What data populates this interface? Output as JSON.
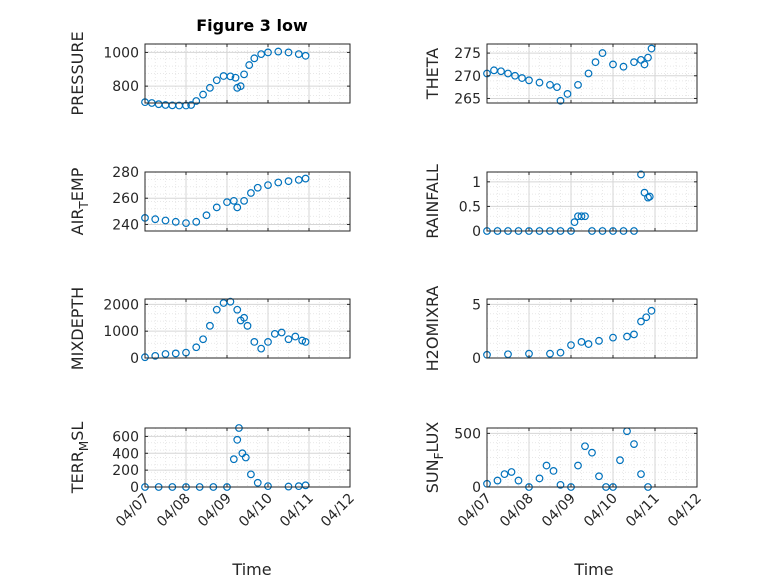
{
  "figure": {
    "title": "Figure 3 low",
    "xlabel": "Time"
  },
  "colors": {
    "marker": "#0072BD",
    "grid": "#E0E0E0",
    "axis": "#262626"
  },
  "chart_data": [
    {
      "type": "scatter",
      "ylabel": "PRESSURE",
      "xlim": [
        "04/07",
        "04/12"
      ],
      "ylim": [
        700,
        1050
      ],
      "yticks": [
        800,
        1000
      ],
      "xticks": [
        "04/07",
        "04/08",
        "04/09",
        "04/10",
        "04/11",
        "04/12"
      ],
      "grid": true,
      "series": [
        {
          "marker": "o",
          "points": [
            [
              "04/07 00:00",
              705
            ],
            [
              "04/07 04:00",
              700
            ],
            [
              "04/07 08:00",
              693
            ],
            [
              "04/07 12:00",
              688
            ],
            [
              "04/07 16:00",
              686
            ],
            [
              "04/07 20:00",
              685
            ],
            [
              "04/08 00:00",
              685
            ],
            [
              "04/08 03:00",
              688
            ],
            [
              "04/08 06:00",
              712
            ],
            [
              "04/08 10:00",
              750
            ],
            [
              "04/08 14:00",
              790
            ],
            [
              "04/08 18:00",
              835
            ],
            [
              "04/08 22:00",
              860
            ],
            [
              "04/09 02:00",
              858
            ],
            [
              "04/09 05:00",
              850
            ],
            [
              "04/09 06:00",
              790
            ],
            [
              "04/09 08:00",
              800
            ],
            [
              "04/09 10:00",
              870
            ],
            [
              "04/09 13:00",
              925
            ],
            [
              "04/09 16:00",
              965
            ],
            [
              "04/09 20:00",
              990
            ],
            [
              "04/10 00:00",
              1000
            ],
            [
              "04/10 06:00",
              1005
            ],
            [
              "04/10 12:00",
              1000
            ],
            [
              "04/10 18:00",
              990
            ],
            [
              "04/10 22:00",
              980
            ]
          ]
        }
      ]
    },
    {
      "type": "scatter",
      "ylabel": "THETA",
      "xlim": [
        "04/07",
        "04/12"
      ],
      "ylim": [
        264,
        277
      ],
      "yticks": [
        265,
        270,
        275
      ],
      "xticks": [
        "04/07",
        "04/08",
        "04/09",
        "04/10",
        "04/11",
        "04/12"
      ],
      "grid": true,
      "series": [
        {
          "marker": "o",
          "points": [
            [
              "04/07 00:00",
              270.5
            ],
            [
              "04/07 04:00",
              271.2
            ],
            [
              "04/07 08:00",
              271.0
            ],
            [
              "04/07 12:00",
              270.5
            ],
            [
              "04/07 16:00",
              270.0
            ],
            [
              "04/07 20:00",
              269.5
            ],
            [
              "04/08 00:00",
              269.0
            ],
            [
              "04/08 06:00",
              268.5
            ],
            [
              "04/08 12:00",
              268.0
            ],
            [
              "04/08 16:00",
              267.5
            ],
            [
              "04/08 18:00",
              264.5
            ],
            [
              "04/08 22:00",
              266.0
            ],
            [
              "04/09 04:00",
              268.0
            ],
            [
              "04/09 10:00",
              270.5
            ],
            [
              "04/09 14:00",
              273.0
            ],
            [
              "04/09 18:00",
              275.0
            ],
            [
              "04/10 00:00",
              272.5
            ],
            [
              "04/10 06:00",
              272.0
            ],
            [
              "04/10 12:00",
              273.0
            ],
            [
              "04/10 16:00",
              273.5
            ],
            [
              "04/10 18:00",
              272.5
            ],
            [
              "04/10 20:00",
              274.0
            ],
            [
              "04/10 22:00",
              276.0
            ]
          ]
        }
      ]
    },
    {
      "type": "scatter",
      "ylabel": "AIR_TEMP",
      "xlim": [
        "04/07",
        "04/12"
      ],
      "ylim": [
        235,
        280
      ],
      "yticks": [
        240,
        260,
        280
      ],
      "xticks": [
        "04/07",
        "04/08",
        "04/09",
        "04/10",
        "04/11",
        "04/12"
      ],
      "grid": true,
      "series": [
        {
          "marker": "o",
          "points": [
            [
              "04/07 00:00",
              245
            ],
            [
              "04/07 06:00",
              244
            ],
            [
              "04/07 12:00",
              243
            ],
            [
              "04/07 18:00",
              242
            ],
            [
              "04/08 00:00",
              241
            ],
            [
              "04/08 06:00",
              242
            ],
            [
              "04/08 12:00",
              247
            ],
            [
              "04/08 18:00",
              253
            ],
            [
              "04/09 00:00",
              257
            ],
            [
              "04/09 04:00",
              258
            ],
            [
              "04/09 06:00",
              253
            ],
            [
              "04/09 10:00",
              258
            ],
            [
              "04/09 14:00",
              264
            ],
            [
              "04/09 18:00",
              268
            ],
            [
              "04/10 00:00",
              270
            ],
            [
              "04/10 06:00",
              272
            ],
            [
              "04/10 12:00",
              273
            ],
            [
              "04/10 18:00",
              274
            ],
            [
              "04/10 22:00",
              275
            ]
          ]
        }
      ]
    },
    {
      "type": "scatter",
      "ylabel": "RAINFALL",
      "xlim": [
        "04/07",
        "04/12"
      ],
      "ylim": [
        0,
        1.2
      ],
      "yticks": [
        0,
        0.5,
        1
      ],
      "xticks": [
        "04/07",
        "04/08",
        "04/09",
        "04/10",
        "04/11",
        "04/12"
      ],
      "grid": true,
      "series": [
        {
          "marker": "o",
          "points": [
            [
              "04/07 00:00",
              0
            ],
            [
              "04/07 06:00",
              0
            ],
            [
              "04/07 12:00",
              0
            ],
            [
              "04/07 18:00",
              0
            ],
            [
              "04/08 00:00",
              0
            ],
            [
              "04/08 06:00",
              0
            ],
            [
              "04/08 12:00",
              0
            ],
            [
              "04/08 18:00",
              0
            ],
            [
              "04/09 00:00",
              0
            ],
            [
              "04/09 02:00",
              0.18
            ],
            [
              "04/09 04:00",
              0.3
            ],
            [
              "04/09 06:00",
              0.3
            ],
            [
              "04/09 08:00",
              0.3
            ],
            [
              "04/09 12:00",
              0
            ],
            [
              "04/09 18:00",
              0
            ],
            [
              "04/10 00:00",
              0
            ],
            [
              "04/10 06:00",
              0
            ],
            [
              "04/10 12:00",
              0
            ],
            [
              "04/10 16:00",
              1.15
            ],
            [
              "04/10 18:00",
              0.78
            ],
            [
              "04/10 20:00",
              0.68
            ],
            [
              "04/10 21:00",
              0.7
            ]
          ]
        }
      ]
    },
    {
      "type": "scatter",
      "ylabel": "MIXDEPTH",
      "xlim": [
        "04/07",
        "04/12"
      ],
      "ylim": [
        0,
        2200
      ],
      "yticks": [
        0,
        1000,
        2000
      ],
      "xticks": [
        "04/07",
        "04/08",
        "04/09",
        "04/10",
        "04/11",
        "04/12"
      ],
      "grid": true,
      "series": [
        {
          "marker": "o",
          "points": [
            [
              "04/07 00:00",
              30
            ],
            [
              "04/07 06:00",
              80
            ],
            [
              "04/07 12:00",
              150
            ],
            [
              "04/07 18:00",
              170
            ],
            [
              "04/08 00:00",
              200
            ],
            [
              "04/08 06:00",
              400
            ],
            [
              "04/08 10:00",
              700
            ],
            [
              "04/08 14:00",
              1200
            ],
            [
              "04/08 18:00",
              1800
            ],
            [
              "04/08 22:00",
              2050
            ],
            [
              "04/09 02:00",
              2100
            ],
            [
              "04/09 06:00",
              1800
            ],
            [
              "04/09 08:00",
              1400
            ],
            [
              "04/09 10:00",
              1500
            ],
            [
              "04/09 12:00",
              1200
            ],
            [
              "04/09 16:00",
              600
            ],
            [
              "04/09 20:00",
              350
            ],
            [
              "04/10 00:00",
              600
            ],
            [
              "04/10 04:00",
              900
            ],
            [
              "04/10 08:00",
              950
            ],
            [
              "04/10 12:00",
              700
            ],
            [
              "04/10 16:00",
              800
            ],
            [
              "04/10 20:00",
              650
            ],
            [
              "04/10 22:00",
              600
            ]
          ]
        }
      ]
    },
    {
      "type": "scatter",
      "ylabel": "H2OMIXRA",
      "xlim": [
        "04/07",
        "04/12"
      ],
      "ylim": [
        0,
        5.5
      ],
      "yticks": [
        0,
        5
      ],
      "xticks": [
        "04/07",
        "04/08",
        "04/09",
        "04/10",
        "04/11",
        "04/12"
      ],
      "grid": true,
      "series": [
        {
          "marker": "o",
          "points": [
            [
              "04/07 00:00",
              0.3
            ],
            [
              "04/07 12:00",
              0.35
            ],
            [
              "04/08 00:00",
              0.4
            ],
            [
              "04/08 12:00",
              0.4
            ],
            [
              "04/08 18:00",
              0.5
            ],
            [
              "04/09 00:00",
              1.2
            ],
            [
              "04/09 06:00",
              1.5
            ],
            [
              "04/09 10:00",
              1.3
            ],
            [
              "04/09 16:00",
              1.6
            ],
            [
              "04/10 00:00",
              1.9
            ],
            [
              "04/10 08:00",
              2.0
            ],
            [
              "04/10 12:00",
              2.2
            ],
            [
              "04/10 16:00",
              3.4
            ],
            [
              "04/10 19:00",
              3.8
            ],
            [
              "04/10 22:00",
              4.4
            ]
          ]
        }
      ]
    },
    {
      "type": "scatter",
      "ylabel": "TERR_MSL",
      "xlim": [
        "04/07",
        "04/12"
      ],
      "ylim": [
        0,
        700
      ],
      "yticks": [
        0,
        200,
        400,
        600
      ],
      "xticks": [
        "04/07",
        "04/08",
        "04/09",
        "04/10",
        "04/11",
        "04/12"
      ],
      "grid": true,
      "series": [
        {
          "marker": "o",
          "points": [
            [
              "04/07 00:00",
              0
            ],
            [
              "04/07 08:00",
              0
            ],
            [
              "04/07 16:00",
              0
            ],
            [
              "04/08 00:00",
              0
            ],
            [
              "04/08 08:00",
              0
            ],
            [
              "04/08 16:00",
              0
            ],
            [
              "04/09 00:00",
              0
            ],
            [
              "04/09 04:00",
              330
            ],
            [
              "04/09 06:00",
              560
            ],
            [
              "04/09 07:00",
              700
            ],
            [
              "04/09 09:00",
              400
            ],
            [
              "04/09 11:00",
              350
            ],
            [
              "04/09 14:00",
              150
            ],
            [
              "04/09 18:00",
              50
            ],
            [
              "04/10 00:00",
              10
            ],
            [
              "04/10 12:00",
              5
            ],
            [
              "04/10 18:00",
              10
            ],
            [
              "04/10 22:00",
              20
            ]
          ]
        }
      ]
    },
    {
      "type": "scatter",
      "ylabel": "SUN_FLUX",
      "xlim": [
        "04/07",
        "04/12"
      ],
      "ylim": [
        0,
        550
      ],
      "yticks": [
        0,
        500
      ],
      "xticks": [
        "04/07",
        "04/08",
        "04/09",
        "04/10",
        "04/11",
        "04/12"
      ],
      "grid": true,
      "series": [
        {
          "marker": "o",
          "points": [
            [
              "04/07 00:00",
              30
            ],
            [
              "04/07 06:00",
              60
            ],
            [
              "04/07 10:00",
              120
            ],
            [
              "04/07 14:00",
              140
            ],
            [
              "04/07 18:00",
              60
            ],
            [
              "04/08 00:00",
              0
            ],
            [
              "04/08 06:00",
              80
            ],
            [
              "04/08 10:00",
              200
            ],
            [
              "04/08 14:00",
              150
            ],
            [
              "04/08 18:00",
              20
            ],
            [
              "04/09 00:00",
              0
            ],
            [
              "04/09 04:00",
              200
            ],
            [
              "04/09 08:00",
              380
            ],
            [
              "04/09 12:00",
              320
            ],
            [
              "04/09 16:00",
              100
            ],
            [
              "04/09 20:00",
              0
            ],
            [
              "04/10 00:00",
              0
            ],
            [
              "04/10 04:00",
              250
            ],
            [
              "04/10 08:00",
              520
            ],
            [
              "04/10 12:00",
              400
            ],
            [
              "04/10 16:00",
              120
            ],
            [
              "04/10 20:00",
              0
            ]
          ]
        }
      ]
    }
  ]
}
